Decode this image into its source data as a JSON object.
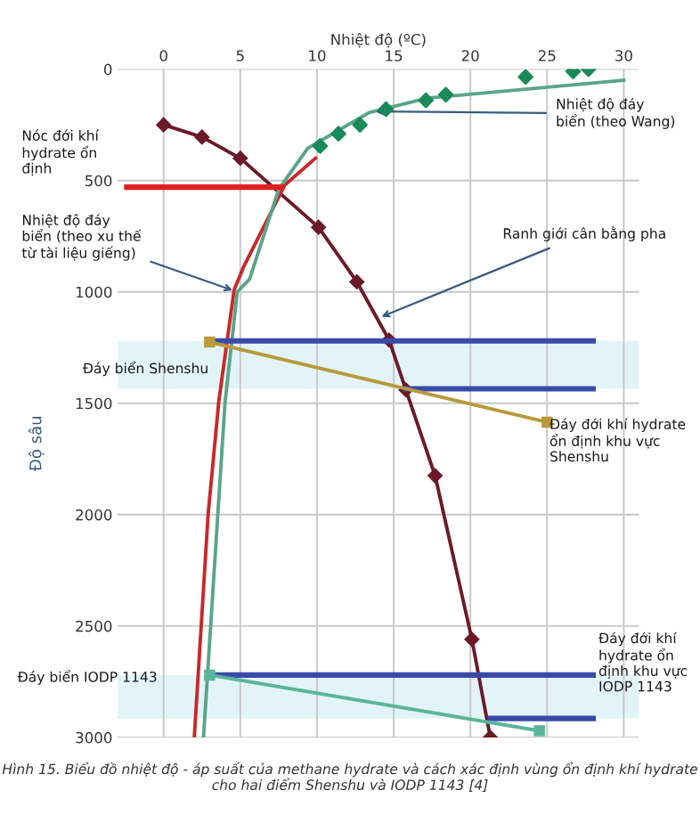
{
  "chart_data": {
    "type": "line",
    "xlabel": "Nhiệt độ (ºC)",
    "ylabel": "Độ sâu",
    "xlim": [
      -3,
      31
    ],
    "xticks": [
      0,
      5,
      10,
      15,
      20,
      25,
      30
    ],
    "ylim": [
      3000,
      0
    ],
    "yticks": [
      0,
      500,
      1000,
      1500,
      2000,
      2500,
      3000
    ],
    "grid": true,
    "series": [
      {
        "color": "#6b1a2a",
        "marker": "diamond",
        "x": [
          0,
          2.5,
          5,
          10.1,
          12.6,
          14.7,
          15.8,
          17.7,
          20.1,
          21.3
        ],
        "values": [
          250,
          305,
          400,
          710,
          955,
          1216,
          1440,
          1825,
          2560,
          3000
        ]
      },
      {
        "color": "#c8282a",
        "marker": "none",
        "x": [
          9.9,
          7.9,
          5.2,
          4.6,
          3.6,
          2.9,
          2.0
        ],
        "values": [
          400,
          520,
          890,
          990,
          1490,
          2000,
          3000
        ]
      },
      {
        "color": "#5aa58a",
        "marker": "none",
        "x": [
          30,
          17.2,
          13.4,
          9.4,
          7.5,
          5.6,
          4.8,
          4.0,
          2.6
        ],
        "values": [
          50,
          130,
          195,
          355,
          540,
          944,
          1000,
          1500,
          3000
        ]
      },
      {
        "type": "scatter",
        "color": "#1a8a5a",
        "marker": "diamond",
        "x": [
          10.2,
          11.4,
          12.8,
          14.5,
          17.1,
          18.4,
          23.6,
          26.7,
          27.7
        ],
        "values": [
          345,
          290,
          250,
          180,
          140,
          115,
          35,
          10,
          0
        ]
      },
      {
        "color": "#e02020",
        "marker": "none",
        "x": [
          -2.4,
          7.7
        ],
        "values": [
          530,
          530
        ]
      },
      {
        "color": "#3a4aa8",
        "marker": "none",
        "x": [
          3.3,
          28
        ],
        "values": [
          1220,
          1220
        ]
      },
      {
        "color": "#3a4aa8",
        "marker": "none",
        "x": [
          15.8,
          28
        ],
        "values": [
          1435,
          1435
        ]
      },
      {
        "color": "#b89a3a",
        "marker": "square",
        "x": [
          3.0,
          25
        ],
        "values": [
          1225,
          1585
        ]
      },
      {
        "color": "#3a4aa8",
        "marker": "none",
        "x": [
          3.3,
          28
        ],
        "values": [
          2720,
          2720
        ]
      },
      {
        "color": "#3a4aa8",
        "marker": "none",
        "x": [
          21.3,
          28
        ],
        "values": [
          2915,
          2915
        ]
      },
      {
        "color": "#5ab59a",
        "marker": "square",
        "x": [
          3.0,
          24.5
        ],
        "values": [
          2720,
          2970
        ]
      }
    ],
    "bands": [
      {
        "axis": "y",
        "from": 1220,
        "to": 1435,
        "color": "#d6f0f4"
      },
      {
        "axis": "y",
        "from": 2720,
        "to": 2915,
        "color": "#d6f0f4"
      }
    ],
    "annotations": [
      "Nóc đới khí\nhydrate ổn\nđịnh",
      {
        "text": "Nhiệt độ đáy\nbiển (theo xu thế\ntừ tài liệu giếng)",
        "x": 4.8,
        "y": 1000
      },
      {
        "text": "Ranh giới cân bằng pha",
        "x": 13.9,
        "y": 1120
      },
      {
        "text": "Nhiệt độ đáy\nbiển (theo Wang)",
        "x": 13.5,
        "y": 190
      },
      "Đáy biển Shenshu",
      "Đáy đới khí hydrate\nổn định khu vực\nShenshu",
      "Đáy biển IODP 1143",
      "Đáy đới khí\nhydrate ổn\nđịnh khu vực\nIODP 1143",
      "Hình 15. Biểu đồ nhiệt độ - áp suất của methane hydrate và cách xác định vùng ổn định khí hydrate cho hai điểm Shenshu và IODP 1143 [4]"
    ]
  }
}
